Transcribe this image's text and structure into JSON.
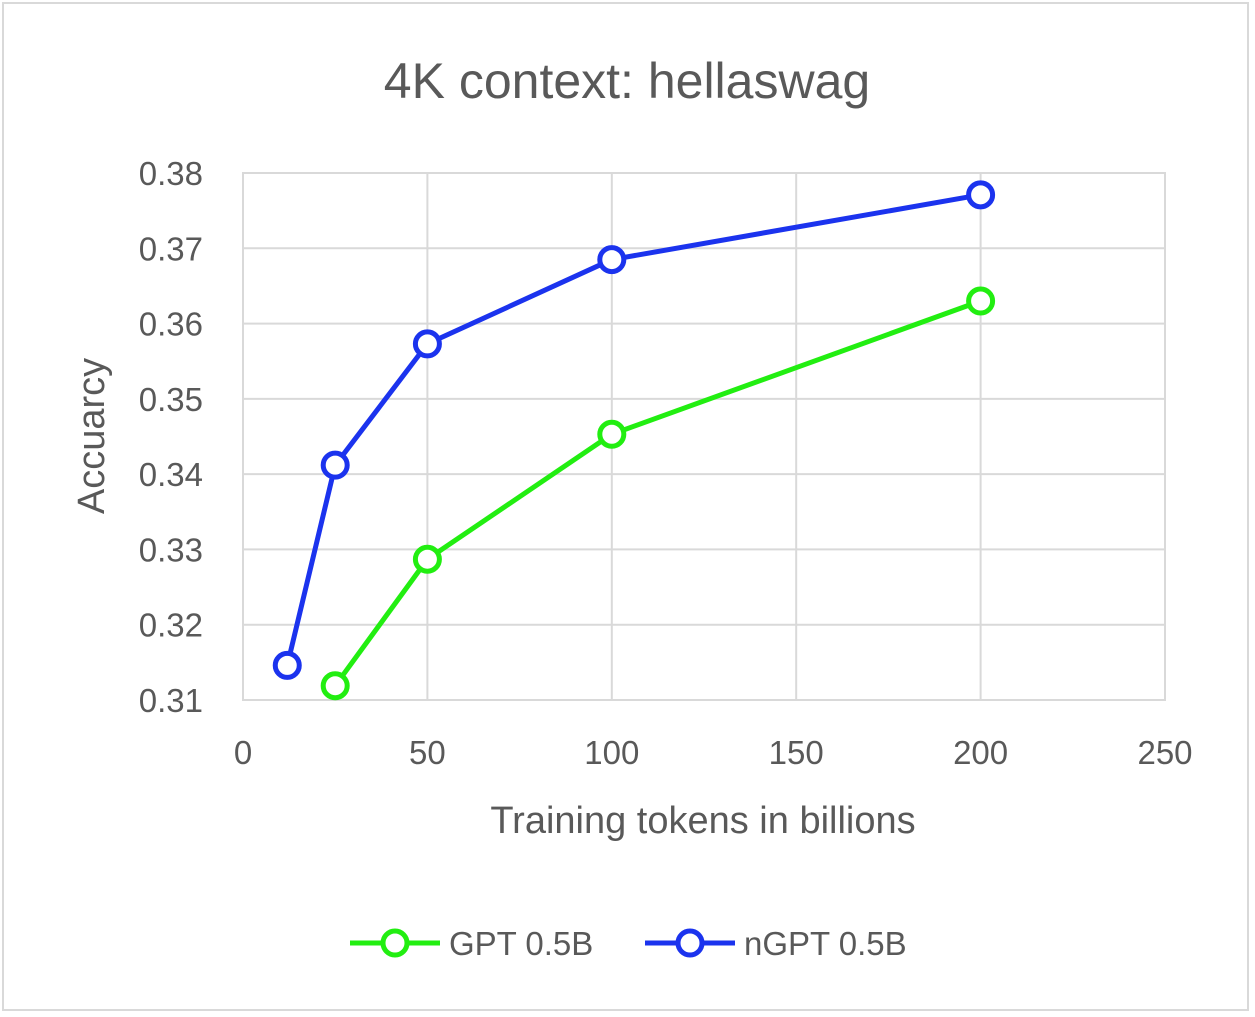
{
  "chart_data": {
    "type": "line",
    "title": "4K context: hellaswag",
    "xlabel": "Training tokens in billions",
    "ylabel": "Accuarcy",
    "xlim": [
      0,
      250
    ],
    "ylim": [
      0.31,
      0.38
    ],
    "x_ticks": [
      "0",
      "50",
      "100",
      "150",
      "200",
      "250"
    ],
    "y_ticks": [
      "0.31",
      "0.32",
      "0.33",
      "0.34",
      "0.35",
      "0.36",
      "0.37",
      "0.38"
    ],
    "grid": true,
    "legend_position": "bottom",
    "marker": "open-circle",
    "series": [
      {
        "name": "GPT 0.5B",
        "color": "#22ee11",
        "x": [
          25,
          50,
          100,
          200
        ],
        "y": [
          0.3119,
          0.3287,
          0.3453,
          0.363
        ]
      },
      {
        "name": "nGPT 0.5B",
        "color": "#1b33ee",
        "x": [
          12,
          25,
          50,
          100,
          200
        ],
        "y": [
          0.3146,
          0.3412,
          0.3573,
          0.3685,
          0.3771
        ]
      }
    ]
  }
}
